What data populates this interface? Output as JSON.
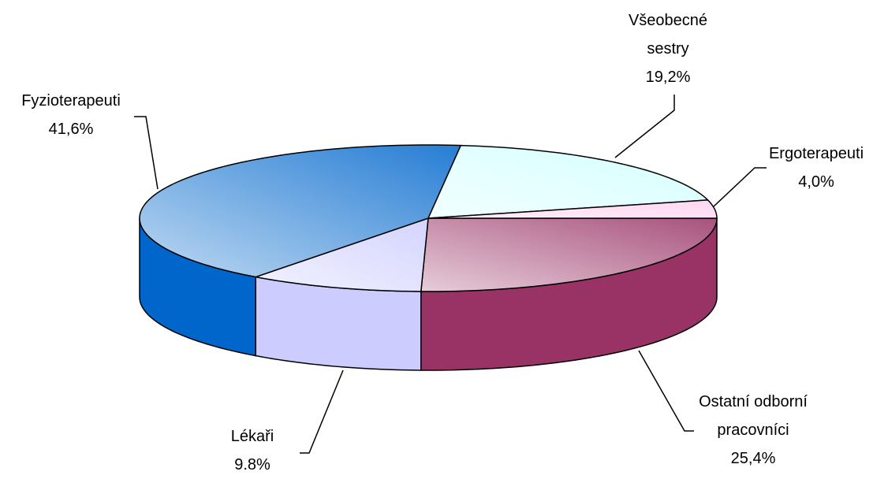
{
  "chart_data": {
    "type": "pie3d",
    "categories": [
      "Ostatní odborní pracovníci",
      "Lékaři",
      "Fyzioterapeuti",
      "Všeobecné sestry",
      "Ergoterapeuti"
    ],
    "values": [
      25.4,
      9.8,
      41.6,
      19.2,
      4.0
    ],
    "value_labels": [
      "25,4%",
      "9.8%",
      "41,6%",
      "19,2%",
      "4,0%"
    ],
    "colors": [
      "#993366",
      "#ccccff",
      "#0066cc",
      "#ccffff",
      "#ffccee"
    ]
  }
}
